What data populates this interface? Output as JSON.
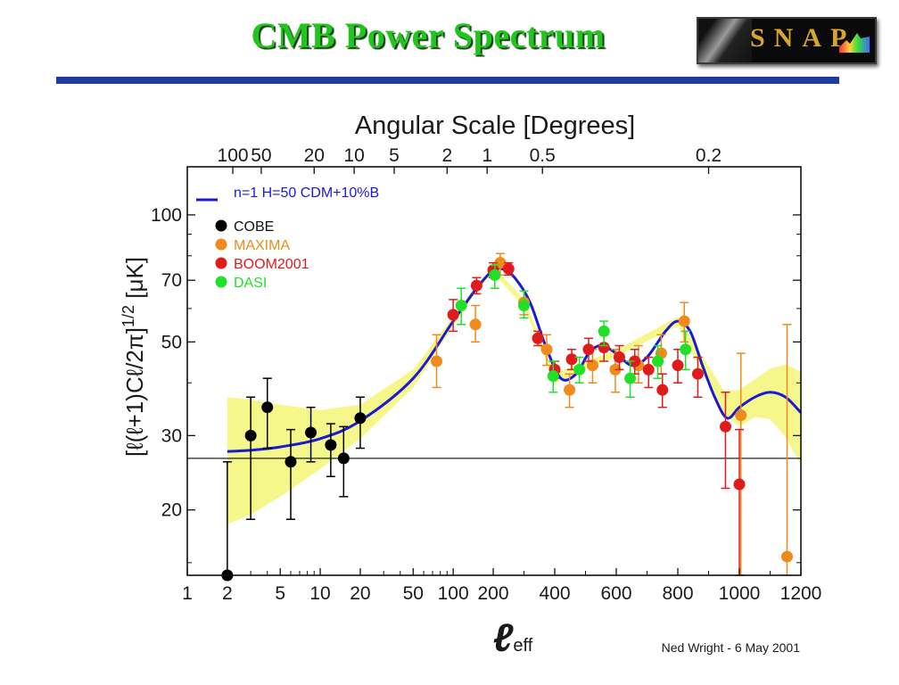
{
  "slide": {
    "title": "CMB Power Spectrum",
    "logo_text": "SNAP",
    "title_color": "#22c51e",
    "rule_color": "#1f3b9e"
  },
  "chart_data": {
    "type": "scatter",
    "title": "",
    "top_axis_label": "Angular Scale [Degrees]",
    "xlabel": "ℓeff",
    "ylabel": "[ℓ(ℓ+1)Cℓ/2π]^1/2 [μK]",
    "xscale": "custom: logarithmic for ℓ ≤ 200, linear for ℓ ≥ 200",
    "yscale": "log",
    "xlim": [
      1,
      1200
    ],
    "ylim": [
      14,
      130
    ],
    "x_ticks": [
      1,
      2,
      5,
      10,
      20,
      50,
      100,
      200,
      400,
      600,
      800,
      1000,
      1200
    ],
    "x_tick_labels": [
      "1",
      "2",
      "5",
      "10",
      "20",
      "50",
      "100",
      "200",
      "400",
      "600",
      "800",
      "1000",
      "1200"
    ],
    "x_minor_ticks": [
      3,
      4,
      6,
      7,
      8,
      9,
      30,
      40,
      60,
      70,
      80,
      90,
      300,
      500,
      700,
      900,
      1100
    ],
    "y_ticks": [
      20,
      30,
      50,
      70,
      100
    ],
    "y_tick_labels": [
      "20",
      "30",
      "50",
      "70",
      "100"
    ],
    "y_minor_ticks": [
      15,
      40,
      60,
      80,
      90
    ],
    "top_ticks_l": [
      2.2,
      3.6,
      9,
      18,
      36,
      90,
      180,
      360,
      900
    ],
    "top_tick_labels": [
      "100",
      "50",
      "20",
      "10",
      "5",
      "2",
      "1",
      "0.5",
      "0.2"
    ],
    "reference_line_y": 26.5,
    "credit": "Ned Wright - 6 May 2001",
    "model": {
      "name": "n=1 H=50 CDM+10%B",
      "color": "#1a1ad6",
      "x": [
        2,
        3,
        5,
        10,
        20,
        50,
        100,
        150,
        200,
        230,
        270,
        320,
        370,
        420,
        470,
        510,
        550,
        600,
        650,
        700,
        760,
        800,
        840,
        880,
        920,
        960,
        1000,
        1050,
        1100,
        1150,
        1200
      ],
      "y": [
        27.5,
        27.7,
        28.2,
        29.5,
        32.5,
        41,
        56,
        67,
        74,
        74.5,
        71,
        62,
        49,
        41,
        42,
        47,
        49,
        47,
        44,
        46,
        53,
        56,
        53,
        44,
        37,
        33,
        35,
        37,
        38,
        37,
        34
      ]
    },
    "cosmic_variance_band": {
      "color": "#f6f78a",
      "x": [
        2,
        3,
        5,
        10,
        20,
        50,
        100,
        150,
        200,
        300,
        400,
        600,
        800,
        950,
        1000,
        1050,
        1100,
        1150,
        1200
      ],
      "upper": [
        37,
        36.5,
        35.5,
        34.5,
        35.5,
        43,
        57.5,
        68.3,
        75.3,
        63.3,
        42.1,
        47.8,
        57.4,
        38.3,
        38.5,
        40.8,
        43.2,
        44.2,
        42.5
      ],
      "lower": [
        18.5,
        19.5,
        21.5,
        25,
        29.5,
        39,
        54.5,
        65.7,
        72.7,
        60.7,
        39.9,
        46.2,
        54.6,
        33.7,
        31.5,
        33.2,
        32.8,
        29.8,
        25.5
      ]
    },
    "series": [
      {
        "name": "COBE",
        "color": "#000000",
        "points": [
          {
            "x": 2,
            "y": 14,
            "lo": 14,
            "hi": 26
          },
          {
            "x": 3,
            "y": 30,
            "lo": 19,
            "hi": 37
          },
          {
            "x": 4,
            "y": 35,
            "lo": 28,
            "hi": 41
          },
          {
            "x": 6,
            "y": 26,
            "lo": 19,
            "hi": 31
          },
          {
            "x": 8.5,
            "y": 30.5,
            "lo": 26,
            "hi": 35
          },
          {
            "x": 12,
            "y": 28.5,
            "lo": 24,
            "hi": 32
          },
          {
            "x": 15,
            "y": 26.5,
            "lo": 21.5,
            "hi": 31.5
          },
          {
            "x": 20,
            "y": 33,
            "lo": 28,
            "hi": 37
          }
        ]
      },
      {
        "name": "MAXIMA",
        "color": "#ef8a1d",
        "points": [
          {
            "x": 75,
            "y": 45,
            "lo": 39,
            "hi": 52
          },
          {
            "x": 147,
            "y": 55,
            "lo": 50,
            "hi": 61
          },
          {
            "x": 223,
            "y": 77,
            "lo": 72,
            "hi": 81
          },
          {
            "x": 300,
            "y": 62,
            "lo": 58,
            "hi": 66
          },
          {
            "x": 374,
            "y": 48,
            "lo": 44,
            "hi": 52
          },
          {
            "x": 448,
            "y": 38.5,
            "lo": 35,
            "hi": 42
          },
          {
            "x": 523,
            "y": 44,
            "lo": 40,
            "hi": 48
          },
          {
            "x": 597,
            "y": 43,
            "lo": 38,
            "hi": 48
          },
          {
            "x": 672,
            "y": 44,
            "lo": 40,
            "hi": 49
          },
          {
            "x": 746,
            "y": 47,
            "lo": 42,
            "hi": 52
          },
          {
            "x": 821,
            "y": 56,
            "lo": 50,
            "hi": 62
          },
          {
            "x": 1005,
            "y": 33.5,
            "lo": 14,
            "hi": 47
          },
          {
            "x": 1155,
            "y": 15.5,
            "lo": 14,
            "hi": 55
          }
        ]
      },
      {
        "name": "BOOM2001",
        "color": "#e01b1b",
        "points": [
          {
            "x": 100,
            "y": 58,
            "lo": 53,
            "hi": 63
          },
          {
            "x": 150,
            "y": 68,
            "lo": 65,
            "hi": 71
          },
          {
            "x": 200,
            "y": 74,
            "lo": 71,
            "hi": 77
          },
          {
            "x": 250,
            "y": 74.5,
            "lo": 72,
            "hi": 77
          },
          {
            "x": 345,
            "y": 51,
            "lo": 49,
            "hi": 53
          },
          {
            "x": 400,
            "y": 43,
            "lo": 41,
            "hi": 45
          },
          {
            "x": 455,
            "y": 45.5,
            "lo": 43,
            "hi": 48
          },
          {
            "x": 510,
            "y": 48,
            "lo": 45,
            "hi": 51
          },
          {
            "x": 560,
            "y": 48.5,
            "lo": 45,
            "hi": 52
          },
          {
            "x": 610,
            "y": 46,
            "lo": 43,
            "hi": 49
          },
          {
            "x": 660,
            "y": 45,
            "lo": 42,
            "hi": 48
          },
          {
            "x": 705,
            "y": 43,
            "lo": 39,
            "hi": 46
          },
          {
            "x": 750,
            "y": 38.5,
            "lo": 35,
            "hi": 42
          },
          {
            "x": 800,
            "y": 44,
            "lo": 40,
            "hi": 48
          },
          {
            "x": 865,
            "y": 42,
            "lo": 37,
            "hi": 46
          },
          {
            "x": 955,
            "y": 31.5,
            "lo": 22.5,
            "hi": 38
          },
          {
            "x": 1000,
            "y": 23,
            "lo": 14,
            "hi": 31
          }
        ]
      },
      {
        "name": "DASI",
        "color": "#22e02a",
        "points": [
          {
            "x": 115,
            "y": 61,
            "lo": 55,
            "hi": 67
          },
          {
            "x": 205,
            "y": 72,
            "lo": 67,
            "hi": 76
          },
          {
            "x": 300,
            "y": 61,
            "lo": 57,
            "hi": 66
          },
          {
            "x": 395,
            "y": 41.5,
            "lo": 38,
            "hi": 45
          },
          {
            "x": 480,
            "y": 43,
            "lo": 40,
            "hi": 46
          },
          {
            "x": 560,
            "y": 53,
            "lo": 49,
            "hi": 56
          },
          {
            "x": 645,
            "y": 41,
            "lo": 37,
            "hi": 45
          },
          {
            "x": 735,
            "y": 45,
            "lo": 41,
            "hi": 49
          },
          {
            "x": 825,
            "y": 48,
            "lo": 43,
            "hi": 53
          }
        ]
      }
    ]
  }
}
